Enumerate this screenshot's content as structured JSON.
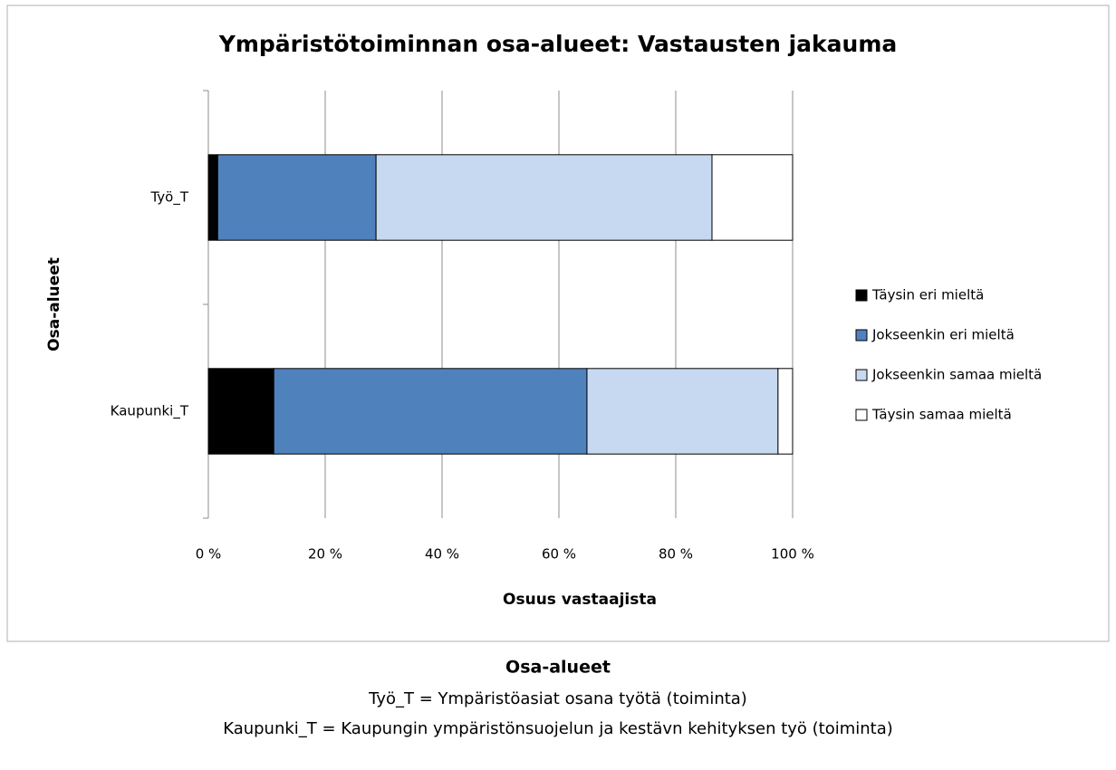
{
  "chart_data": {
    "type": "stacked-bar-horizontal",
    "title": "Ympäristötoiminnan  osa-alueet:  Vastausten  jakauma",
    "x_label": "Osuus vastaajista",
    "y_label": "Osa-alueet",
    "categories": [
      "Työ_T",
      "Kaupunki_T"
    ],
    "series": [
      {
        "name": "Täysin eri mieltä",
        "color": "#000000",
        "values": [
          1.6,
          11.2
        ]
      },
      {
        "name": "Jokseenkin eri mieltä",
        "color": "#4f81bd",
        "values": [
          27.1,
          53.6
        ]
      },
      {
        "name": "Jokseenkin samaa  mieltä",
        "color": "#c6d9f1",
        "values": [
          57.5,
          32.7
        ]
      },
      {
        "name": "Täysin samaa  mieltä",
        "color": "#ffffff",
        "values": [
          13.8,
          2.5
        ]
      }
    ],
    "xlim": [
      0,
      100
    ],
    "xticks": [
      {
        "value": 0,
        "label": "0 %"
      },
      {
        "value": 20,
        "label": "20 %"
      },
      {
        "value": 40,
        "label": "40 %"
      },
      {
        "value": 60,
        "label": "60 %"
      },
      {
        "value": 80,
        "label": "80 %"
      },
      {
        "value": 100,
        "label": "100 %"
      }
    ],
    "grid": true,
    "legend": "right"
  },
  "footer": {
    "title": "Osa-alueet",
    "lines": [
      "Työ_T = Ympäristöasiat osana työtä (toiminta)",
      "Kaupunki_T = Kaupungin ympäristönsuojelun ja kestävn kehityksen työ (toiminta)"
    ]
  }
}
